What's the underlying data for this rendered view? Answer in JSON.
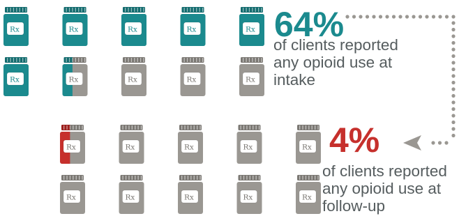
{
  "colors": {
    "opioid_use": "#1b8a8e",
    "opioid_use_dark": "#126b6e",
    "followup_use": "#c6302c",
    "followup_use_dark": "#9c1f1c",
    "no_use": "#9a9792",
    "no_use_dark": "#7b7873",
    "label_fill": "#ffffff",
    "text": "#555c5e",
    "dots": "#9a9792"
  },
  "icon": "pill-bottle-icon",
  "bottle_label": "Rx",
  "chart_data": [
    {
      "type": "pictogram",
      "period": "intake",
      "total_icons": 10,
      "share_percent": 64,
      "headline": "64%",
      "caption_lines": [
        "of clients reported",
        "any opioid use at",
        "intake"
      ],
      "highlight_color": "#1b8a8e"
    },
    {
      "type": "pictogram",
      "period": "follow-up",
      "total_icons": 10,
      "share_percent": 4,
      "headline": "4%",
      "caption_lines": [
        "of clients reported",
        "any opioid use at",
        "follow-up"
      ],
      "highlight_color": "#c6302c"
    }
  ]
}
